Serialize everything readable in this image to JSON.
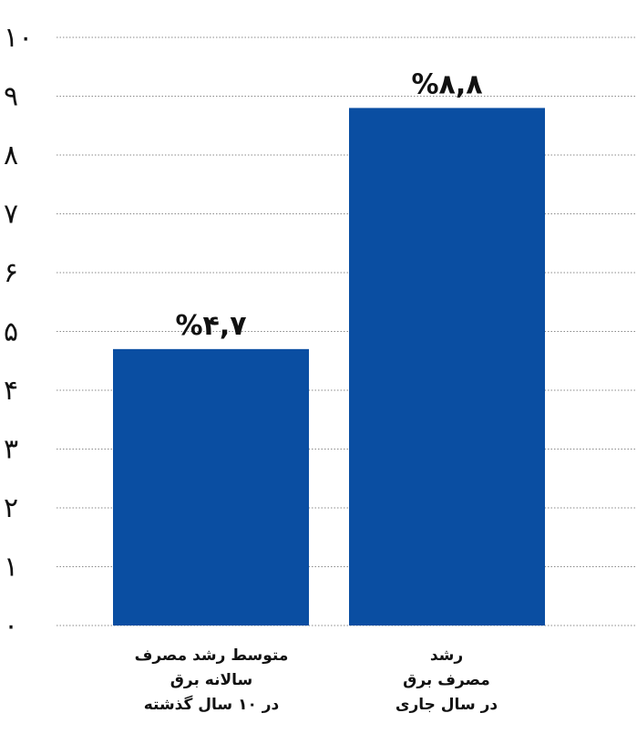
{
  "chart_data": {
    "type": "bar",
    "categories": [
      [
        "متوسط رشد مصرف",
        "سالانه برق",
        "در ۱۰ سال گذشته"
      ],
      [
        "رشد",
        "مصرف برق",
        "در سال جاری"
      ]
    ],
    "values": [
      4.7,
      8.8
    ],
    "data_labels": [
      "%۴,۷",
      "%۸,۸"
    ],
    "ylim": [
      0,
      10
    ],
    "y_ticks": [
      {
        "value": 0,
        "label": "۰"
      },
      {
        "value": 1,
        "label": "۱"
      },
      {
        "value": 2,
        "label": "۲"
      },
      {
        "value": 3,
        "label": "۳"
      },
      {
        "value": 4,
        "label": "۴"
      },
      {
        "value": 5,
        "label": "۵"
      },
      {
        "value": 6,
        "label": "۶"
      },
      {
        "value": 7,
        "label": "۷"
      },
      {
        "value": 8,
        "label": "۸"
      },
      {
        "value": 9,
        "label": "۹"
      },
      {
        "value": 10,
        "label": "۱۰"
      }
    ],
    "grid": true,
    "grid_style": "dotted",
    "bar_color": "#0a4ea2",
    "title": "",
    "xlabel": "",
    "ylabel": ""
  }
}
